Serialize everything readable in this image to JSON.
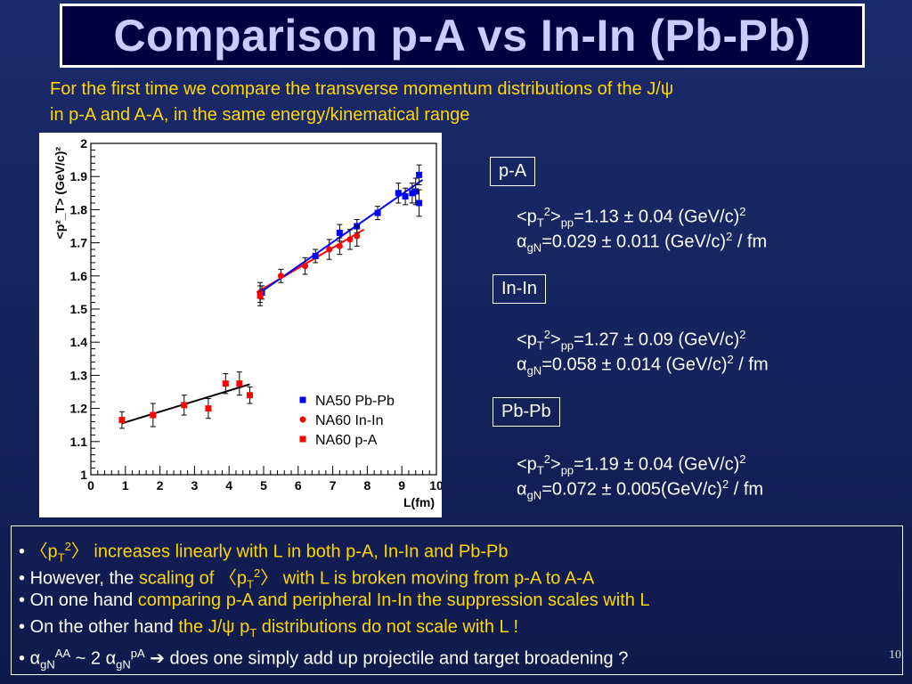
{
  "title": "Comparison p-A vs In-In (Pb-Pb)",
  "intro": {
    "line1": "For the first time we compare the transverse momentum distributions of the J/ψ",
    "line2": "in p-A and A-A, in the same energy/kinematical range"
  },
  "systems": [
    {
      "label": "p-A",
      "pt_pre": "<p",
      "pt_sub": "T",
      "pt_sup": "2",
      "pt_mid": ">",
      "pt_pp": "pp",
      "pt_value": "=1.13 ± 0.04 (GeV/c)",
      "pt_unit_sup": "2",
      "alpha_sym": "α",
      "alpha_sub": "gN",
      "alpha_value": "=0.029 ± 0.011 (GeV/c)",
      "alpha_unit_sup": "2",
      "alpha_tail": " / fm"
    },
    {
      "label": "In-In",
      "pt_pre": "<p",
      "pt_sub": "T",
      "pt_sup": "2",
      "pt_mid": ">",
      "pt_pp": "pp",
      "pt_value": "=1.27 ± 0.09 (GeV/c)",
      "pt_unit_sup": "2",
      "alpha_sym": "α",
      "alpha_sub": "gN",
      "alpha_value": "=0.058 ± 0.014 (GeV/c)",
      "alpha_unit_sup": "2",
      "alpha_tail": " / fm"
    },
    {
      "label": "Pb-Pb",
      "pt_pre": "<p",
      "pt_sub": "T",
      "pt_sup": "2",
      "pt_mid": ">",
      "pt_pp": "pp",
      "pt_value": "=1.19 ± 0.04 (GeV/c)",
      "pt_unit_sup": "2",
      "alpha_sym": "α",
      "alpha_sub": "gN",
      "alpha_value": "=0.072 ± 0.005(GeV/c)",
      "alpha_unit_sup": "2",
      "alpha_tail": " / fm"
    }
  ],
  "bullets": {
    "b1": {
      "dot": "• ",
      "open": "〈p",
      "sub": "T",
      "sup": "2",
      "close": "〉",
      "text": " increases linearly with L in both p-A, In-In and Pb-Pb"
    },
    "b2": {
      "dot": "• ",
      "plain": "However, the ",
      "hl_a": "scaling of ",
      "open": "〈p",
      "sub": "T",
      "sup": "2",
      "close": "〉",
      "hl_b": " with L is broken moving from p-A to A-A"
    },
    "b3": {
      "dot": "• ",
      "plain": "On one hand ",
      "hl": "comparing p-A and peripheral In-In the suppression scales with L"
    },
    "b4": {
      "dot": "• ",
      "plain": "On the other hand  ",
      "hl_a": "the J/ψ p",
      "sub": "T",
      "hl_b": " distributions do not scale with L !"
    },
    "b5": {
      "dot": "• ",
      "alpha": "α",
      "sub1": "gN",
      "sup1": "AA",
      "mid": " ~ 2 ",
      "alpha2": "α",
      "sub2": "gN",
      "sup2": "pA",
      "arrow": " ➔ ",
      "text": "does one simply add up projectile and target broadening ?"
    }
  },
  "page_number": "10",
  "chart_data": {
    "type": "scatter",
    "xlabel": "L(fm)",
    "ylabel": "<p²_T> (GeV/c)²",
    "xlim": [
      0,
      10
    ],
    "ylim": [
      1.0,
      2.0
    ],
    "x_ticks": [
      "0",
      "1",
      "2",
      "3",
      "4",
      "5",
      "6",
      "7",
      "8",
      "9",
      "10"
    ],
    "y_ticks": [
      "1",
      "1.1",
      "1.2",
      "1.3",
      "1.4",
      "1.5",
      "1.6",
      "1.7",
      "1.8",
      "1.9",
      "2"
    ],
    "legend_position": "lower-right",
    "series": [
      {
        "name": "NA50 Pb-Pb",
        "color": "#0000ff",
        "marker": "square",
        "x": [
          4.95,
          6.5,
          7.2,
          7.7,
          8.3,
          8.9,
          9.1,
          9.3,
          9.4,
          9.5,
          9.5
        ],
        "y": [
          1.55,
          1.66,
          1.73,
          1.75,
          1.79,
          1.85,
          1.84,
          1.85,
          1.855,
          1.905,
          1.82
        ],
        "err": [
          0.02,
          0.02,
          0.025,
          0.02,
          0.02,
          0.03,
          0.025,
          0.03,
          0.04,
          0.03,
          0.04
        ]
      },
      {
        "name": "NA60 In-In",
        "color": "#ff0000",
        "marker": "circle",
        "x": [
          4.9,
          5.5,
          6.2,
          6.9,
          7.2,
          7.5,
          7.7
        ],
        "y": [
          1.55,
          1.6,
          1.63,
          1.68,
          1.69,
          1.71,
          1.72
        ],
        "err": [
          0.03,
          0.02,
          0.025,
          0.03,
          0.025,
          0.03,
          0.03
        ]
      },
      {
        "name": "NA60 p-A",
        "color": "#ff0000",
        "marker": "square",
        "x": [
          0.9,
          1.8,
          2.7,
          3.4,
          3.9,
          4.3,
          4.6,
          4.9
        ],
        "y": [
          1.165,
          1.18,
          1.21,
          1.2,
          1.275,
          1.275,
          1.24,
          1.54
        ],
        "err": [
          0.025,
          0.035,
          0.03,
          0.03,
          0.03,
          0.035,
          0.025,
          0.03
        ]
      }
    ],
    "fits": [
      {
        "x": [
          0.9,
          4.6
        ],
        "y": [
          1.155,
          1.273
        ],
        "color": "#000000"
      },
      {
        "x": [
          4.8,
          7.9
        ],
        "y": [
          1.55,
          1.74
        ],
        "color": "#ff0000"
      },
      {
        "x": [
          4.9,
          9.6
        ],
        "y": [
          1.55,
          1.89
        ],
        "color": "#0000ff"
      }
    ]
  }
}
